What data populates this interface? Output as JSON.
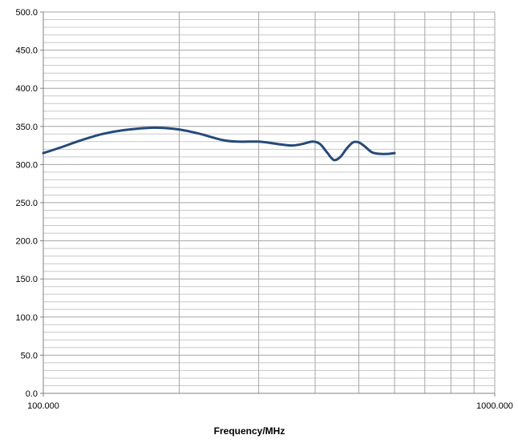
{
  "chart_data": {
    "type": "line",
    "title": "",
    "xlabel": "Frequency/MHz",
    "ylabel": "",
    "x_scale": "log",
    "xlim": [
      100,
      1000
    ],
    "ylim": [
      0,
      500
    ],
    "x_tick_labels": [
      "100.000",
      "1000.000"
    ],
    "y_tick_labels": [
      "0.0",
      "50.0",
      "100.0",
      "150.0",
      "200.0",
      "250.0",
      "300.0",
      "350.0",
      "400.0",
      "450.0",
      "500.0"
    ],
    "grid": true,
    "legend": "none",
    "series": [
      {
        "color": "#254a7a",
        "x": [
          100,
          110,
          120,
          135,
          150,
          170,
          185,
          200,
          220,
          250,
          270,
          300,
          330,
          355,
          375,
          395,
          410,
          425,
          440,
          455,
          470,
          485,
          500,
          515,
          535,
          560,
          580,
          600
        ],
        "y": [
          315,
          323,
          331,
          340,
          345,
          348,
          348,
          346,
          341,
          332,
          330,
          330,
          327,
          325,
          327,
          330,
          327,
          316,
          306,
          310,
          321,
          329,
          329,
          324,
          316,
          314,
          314,
          315
        ]
      }
    ]
  }
}
